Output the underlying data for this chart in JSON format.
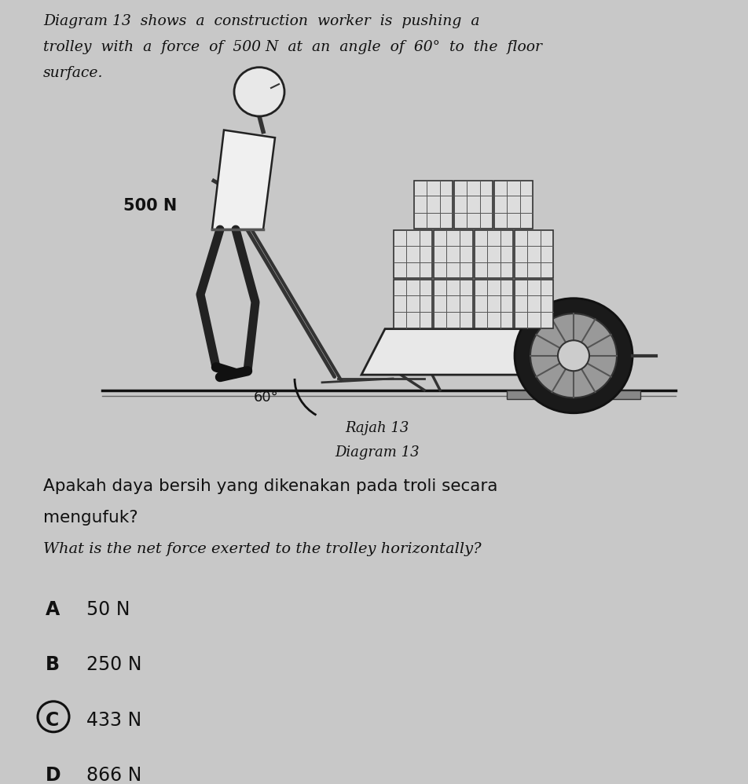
{
  "bg_color": "#c8c8c8",
  "title_line1": "Diagram 13  shows  a  construction  worker  is  pushing  a",
  "title_line2": "trolley  with  a  force  of  500 N  at  an  angle  of  60°  to  the  floor",
  "title_line3": "surface.",
  "force_label": "500 N",
  "angle_label": "60°",
  "diagram_label1": "Rajah 13",
  "diagram_label2": "Diagram 13",
  "question_malay": "Apakah daya bersih yang dikenakan pada troli secara",
  "question_malay2": "mengufuk?",
  "question_english": "What is the net force exerted to the trolley horizontally?",
  "text_color": "#111111",
  "circle_color": "#111111",
  "options": [
    {
      "letter": "A",
      "value": "50 N",
      "correct": false
    },
    {
      "letter": "B",
      "value": "250 N",
      "correct": false
    },
    {
      "letter": "C",
      "value": "433 N",
      "correct": true
    },
    {
      "letter": "D",
      "value": "866 N",
      "correct": false
    }
  ]
}
